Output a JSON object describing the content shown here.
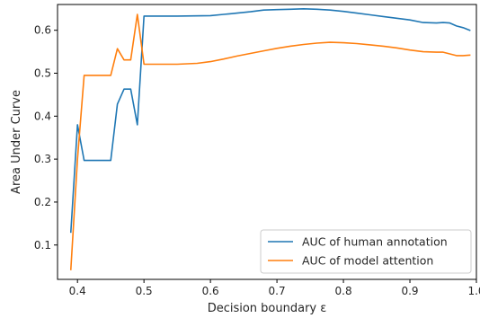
{
  "chart_data": {
    "type": "line",
    "xlabel": "Decision boundary ε",
    "ylabel": "Area Under Curve",
    "xlim": [
      0.37,
      1.0
    ],
    "ylim": [
      0.02,
      0.66
    ],
    "xticks": [
      0.4,
      0.5,
      0.6,
      0.7,
      0.8,
      0.9,
      1.0
    ],
    "xtick_labels": [
      "0.4",
      "0.5",
      "0.6",
      "0.7",
      "0.8",
      "0.9",
      "1.0"
    ],
    "yticks": [
      0.1,
      0.2,
      0.3,
      0.4,
      0.5,
      0.6
    ],
    "ytick_labels": [
      "0.1",
      "0.2",
      "0.3",
      "0.4",
      "0.5",
      "0.6"
    ],
    "grid": false,
    "legend_position": "lower-right",
    "series": [
      {
        "name": "AUC of human annotation",
        "color": "#1f77b4",
        "x": [
          0.39,
          0.4,
          0.41,
          0.42,
          0.43,
          0.44,
          0.45,
          0.46,
          0.47,
          0.48,
          0.49,
          0.5,
          0.55,
          0.6,
          0.62,
          0.64,
          0.66,
          0.68,
          0.7,
          0.72,
          0.74,
          0.76,
          0.78,
          0.8,
          0.82,
          0.84,
          0.86,
          0.88,
          0.9,
          0.92,
          0.94,
          0.95,
          0.96,
          0.97,
          0.98,
          0.99
        ],
        "y": [
          0.13,
          0.38,
          0.297,
          0.297,
          0.297,
          0.297,
          0.297,
          0.428,
          0.463,
          0.463,
          0.38,
          0.633,
          0.633,
          0.634,
          0.637,
          0.64,
          0.643,
          0.647,
          0.648,
          0.649,
          0.65,
          0.649,
          0.647,
          0.644,
          0.64,
          0.636,
          0.632,
          0.628,
          0.624,
          0.618,
          0.617,
          0.618,
          0.617,
          0.61,
          0.606,
          0.6
        ]
      },
      {
        "name": "AUC of model attention",
        "color": "#ff7f0e",
        "x": [
          0.39,
          0.4,
          0.41,
          0.42,
          0.43,
          0.44,
          0.45,
          0.46,
          0.47,
          0.48,
          0.49,
          0.5,
          0.55,
          0.58,
          0.6,
          0.62,
          0.64,
          0.66,
          0.68,
          0.7,
          0.72,
          0.74,
          0.76,
          0.78,
          0.8,
          0.82,
          0.84,
          0.86,
          0.88,
          0.9,
          0.92,
          0.94,
          0.95,
          0.96,
          0.97,
          0.98,
          0.99
        ],
        "y": [
          0.043,
          0.3,
          0.495,
          0.495,
          0.495,
          0.495,
          0.495,
          0.557,
          0.531,
          0.531,
          0.637,
          0.521,
          0.521,
          0.523,
          0.527,
          0.533,
          0.54,
          0.546,
          0.552,
          0.558,
          0.563,
          0.567,
          0.57,
          0.572,
          0.571,
          0.569,
          0.566,
          0.563,
          0.559,
          0.554,
          0.55,
          0.549,
          0.549,
          0.545,
          0.541,
          0.541,
          0.542
        ]
      }
    ]
  }
}
